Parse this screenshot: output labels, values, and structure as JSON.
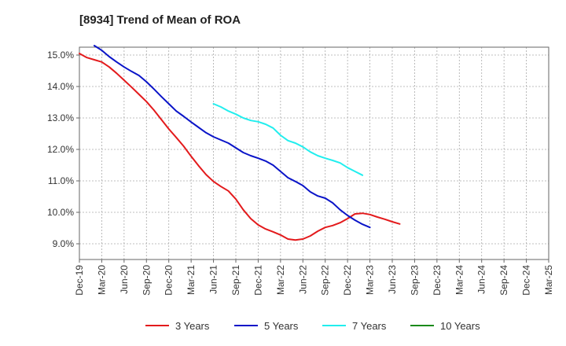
{
  "chart_data": {
    "type": "line",
    "title": "[8934]  Trend of Mean of ROA",
    "xlabel": "",
    "ylabel": "",
    "ylim": [
      8.5,
      15.25
    ],
    "y_ticks": [
      9.0,
      10.0,
      11.0,
      12.0,
      13.0,
      14.0,
      15.0
    ],
    "y_tick_labels": [
      "9.0%",
      "10.0%",
      "11.0%",
      "12.0%",
      "13.0%",
      "14.0%",
      "15.0%"
    ],
    "x_tick_labels": [
      "Dec-19",
      "Mar-20",
      "Jun-20",
      "Sep-20",
      "Dec-20",
      "Mar-21",
      "Jun-21",
      "Sep-21",
      "Dec-21",
      "Mar-22",
      "Jun-22",
      "Sep-22",
      "Dec-22",
      "Mar-23",
      "Jun-23",
      "Sep-23",
      "Dec-23",
      "Mar-24",
      "Jun-24",
      "Sep-24",
      "Dec-24",
      "Mar-25"
    ],
    "grid": true,
    "legend_position": "bottom",
    "series": [
      {
        "name": "3 Years",
        "color": "#e31a1c",
        "start_index": 0,
        "values": [
          15.05,
          14.92,
          14.85,
          14.78,
          14.62,
          14.42,
          14.2,
          13.98,
          13.75,
          13.52,
          13.25,
          12.95,
          12.65,
          12.38,
          12.1,
          11.78,
          11.48,
          11.2,
          10.98,
          10.82,
          10.68,
          10.42,
          10.08,
          9.8,
          9.6,
          9.47,
          9.38,
          9.28,
          9.15,
          9.12,
          9.15,
          9.25,
          9.4,
          9.52,
          9.58,
          9.67,
          9.8,
          9.95,
          9.97,
          9.93,
          9.85,
          9.78,
          9.7,
          9.63
        ]
      },
      {
        "name": "5 Years",
        "color": "#0a14c8",
        "start_index": 2,
        "values": [
          15.3,
          15.15,
          14.95,
          14.78,
          14.62,
          14.48,
          14.35,
          14.15,
          13.92,
          13.68,
          13.45,
          13.22,
          13.05,
          12.87,
          12.7,
          12.53,
          12.4,
          12.3,
          12.2,
          12.05,
          11.9,
          11.8,
          11.72,
          11.63,
          11.5,
          11.3,
          11.1,
          10.98,
          10.85,
          10.65,
          10.52,
          10.45,
          10.3,
          10.08,
          9.9,
          9.75,
          9.62,
          9.52
        ]
      },
      {
        "name": "7 Years",
        "color": "#22eeee",
        "start_index": 18,
        "values": [
          13.45,
          13.35,
          13.22,
          13.12,
          13.0,
          12.92,
          12.88,
          12.8,
          12.68,
          12.45,
          12.28,
          12.2,
          12.08,
          11.92,
          11.8,
          11.72,
          11.65,
          11.57,
          11.42,
          11.3,
          11.18
        ]
      },
      {
        "name": "10 Years",
        "color": "#1a8a1a",
        "start_index": 0,
        "values": []
      }
    ]
  }
}
